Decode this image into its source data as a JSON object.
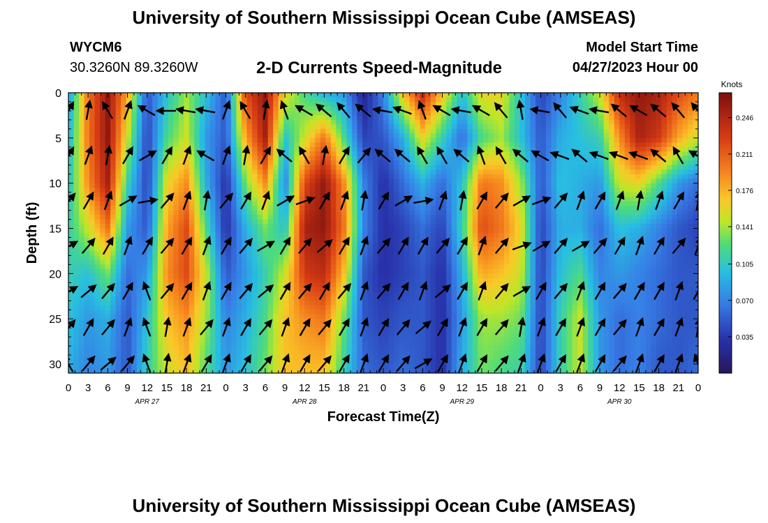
{
  "header": {
    "title": "University of Southern Mississippi Ocean Cube (AMSEAS)",
    "station_id": "WYCM6",
    "station_coords": "30.3260N  89.3260W",
    "plot_title": "2-D Currents Speed-Magnitude",
    "model_label": "Model Start Time",
    "model_time": "04/27/2023 Hour 00"
  },
  "footer": {
    "title": "University of Southern Mississippi Ocean Cube (AMSEAS)"
  },
  "chart_data": {
    "type": "heatmap",
    "title": "2-D Currents Speed-Magnitude",
    "xlabel": "Forecast Time(Z)",
    "ylabel": "Depth (ft)",
    "x_ticks": [
      "0",
      "3",
      "6",
      "9",
      "12",
      "15",
      "18",
      "21",
      "0",
      "3",
      "6",
      "9",
      "12",
      "15",
      "18",
      "21",
      "0",
      "3",
      "6",
      "9",
      "12",
      "15",
      "18",
      "21",
      "0",
      "3",
      "6",
      "9",
      "12",
      "15",
      "18",
      "21",
      "0"
    ],
    "date_labels": [
      "APR 27",
      "APR 28",
      "APR 29",
      "APR 30"
    ],
    "y_ticks": [
      "0",
      "5",
      "10",
      "15",
      "20",
      "25",
      "30"
    ],
    "ylim": [
      0,
      31
    ],
    "xlim_hours": [
      0,
      96
    ],
    "colorbar": {
      "unit": "Knots",
      "ticks": [
        "0.246",
        "0.211",
        "0.176",
        "0.141",
        "0.105",
        "0.070",
        "0.035"
      ],
      "range": [
        0.0,
        0.27
      ]
    },
    "speed_profiles": [
      {
        "hour": 0,
        "speeds": [
          0.08,
          0.09,
          0.1,
          0.11,
          0.11,
          0.1,
          0.09
        ]
      },
      {
        "hour": 3,
        "speeds": [
          0.2,
          0.2,
          0.19,
          0.15,
          0.1,
          0.08,
          0.07
        ]
      },
      {
        "hour": 6,
        "speeds": [
          0.26,
          0.26,
          0.25,
          0.2,
          0.13,
          0.09,
          0.08
        ]
      },
      {
        "hour": 9,
        "speeds": [
          0.18,
          0.15,
          0.11,
          0.08,
          0.06,
          0.05,
          0.05
        ]
      },
      {
        "hour": 12,
        "speeds": [
          0.05,
          0.04,
          0.04,
          0.05,
          0.08,
          0.1,
          0.11
        ]
      },
      {
        "hour": 15,
        "speeds": [
          0.1,
          0.12,
          0.16,
          0.18,
          0.19,
          0.17,
          0.15
        ]
      },
      {
        "hour": 18,
        "speeds": [
          0.14,
          0.15,
          0.19,
          0.22,
          0.22,
          0.19,
          0.17
        ]
      },
      {
        "hour": 21,
        "speeds": [
          0.1,
          0.08,
          0.09,
          0.12,
          0.15,
          0.14,
          0.12
        ]
      },
      {
        "hour": 24,
        "speeds": [
          0.05,
          0.05,
          0.03,
          0.03,
          0.05,
          0.07,
          0.08
        ]
      },
      {
        "hour": 27,
        "speeds": [
          0.22,
          0.18,
          0.13,
          0.09,
          0.08,
          0.09,
          0.1
        ]
      },
      {
        "hour": 30,
        "speeds": [
          0.26,
          0.25,
          0.19,
          0.13,
          0.11,
          0.12,
          0.13
        ]
      },
      {
        "hour": 33,
        "speeds": [
          0.16,
          0.1,
          0.07,
          0.1,
          0.15,
          0.17,
          0.17
        ]
      },
      {
        "hour": 36,
        "speeds": [
          0.12,
          0.15,
          0.22,
          0.25,
          0.23,
          0.19,
          0.17
        ]
      },
      {
        "hour": 39,
        "speeds": [
          0.09,
          0.2,
          0.26,
          0.26,
          0.24,
          0.2,
          0.17
        ]
      },
      {
        "hour": 42,
        "speeds": [
          0.08,
          0.12,
          0.19,
          0.2,
          0.17,
          0.13,
          0.11
        ]
      },
      {
        "hour": 45,
        "speeds": [
          0.02,
          0.04,
          0.07,
          0.07,
          0.05,
          0.05,
          0.06
        ]
      },
      {
        "hour": 48,
        "speeds": [
          0.07,
          0.05,
          0.03,
          0.03,
          0.03,
          0.04,
          0.05
        ]
      },
      {
        "hour": 51,
        "speeds": [
          0.17,
          0.09,
          0.06,
          0.04,
          0.04,
          0.05,
          0.06
        ]
      },
      {
        "hour": 54,
        "speeds": [
          0.24,
          0.16,
          0.09,
          0.06,
          0.05,
          0.05,
          0.05
        ]
      },
      {
        "hour": 57,
        "speeds": [
          0.17,
          0.11,
          0.06,
          0.04,
          0.03,
          0.03,
          0.03
        ]
      },
      {
        "hour": 60,
        "speeds": [
          0.1,
          0.06,
          0.1,
          0.11,
          0.09,
          0.08,
          0.09
        ]
      },
      {
        "hour": 63,
        "speeds": [
          0.16,
          0.12,
          0.2,
          0.22,
          0.18,
          0.14,
          0.13
        ]
      },
      {
        "hour": 66,
        "speeds": [
          0.16,
          0.14,
          0.19,
          0.2,
          0.17,
          0.14,
          0.12
        ]
      },
      {
        "hour": 69,
        "speeds": [
          0.1,
          0.1,
          0.14,
          0.16,
          0.15,
          0.13,
          0.11
        ]
      },
      {
        "hour": 72,
        "speeds": [
          0.04,
          0.05,
          0.05,
          0.04,
          0.04,
          0.04,
          0.04
        ]
      },
      {
        "hour": 75,
        "speeds": [
          0.07,
          0.09,
          0.1,
          0.09,
          0.1,
          0.11,
          0.11
        ]
      },
      {
        "hour": 78,
        "speeds": [
          0.11,
          0.1,
          0.09,
          0.09,
          0.12,
          0.15,
          0.15
        ]
      },
      {
        "hour": 81,
        "speeds": [
          0.15,
          0.11,
          0.08,
          0.06,
          0.07,
          0.08,
          0.08
        ]
      },
      {
        "hour": 84,
        "speeds": [
          0.24,
          0.19,
          0.15,
          0.1,
          0.08,
          0.06,
          0.06
        ]
      },
      {
        "hour": 87,
        "speeds": [
          0.26,
          0.25,
          0.16,
          0.09,
          0.07,
          0.07,
          0.07
        ]
      },
      {
        "hour": 90,
        "speeds": [
          0.25,
          0.23,
          0.12,
          0.07,
          0.06,
          0.06,
          0.05
        ]
      },
      {
        "hour": 93,
        "speeds": [
          0.22,
          0.18,
          0.08,
          0.05,
          0.05,
          0.05,
          0.05
        ]
      },
      {
        "hour": 96,
        "speeds": [
          0.2,
          0.15,
          0.06,
          0.04,
          0.05,
          0.05,
          0.06
        ]
      }
    ],
    "vector_rows_depth_ft": [
      2,
      7,
      12,
      17,
      22,
      26,
      30
    ],
    "vector_directions_deg": [
      [
        30,
        10,
        -30,
        20,
        -60,
        -90,
        -80,
        -80,
        20,
        -30,
        10,
        -20,
        -60,
        -50,
        -40,
        -50,
        -80,
        -70,
        -20,
        -60,
        -80,
        -60,
        -40,
        -10,
        -80,
        -40,
        -70,
        -80,
        -50,
        -60,
        -50,
        -40,
        -40
      ],
      [
        30,
        20,
        10,
        30,
        60,
        30,
        20,
        -60,
        20,
        10,
        30,
        -50,
        -30,
        10,
        30,
        40,
        -50,
        -50,
        -30,
        -30,
        -50,
        -20,
        -30,
        -50,
        -60,
        -70,
        -50,
        -70,
        -70,
        -70,
        -50,
        -30,
        -60
      ],
      [
        40,
        30,
        20,
        60,
        80,
        40,
        20,
        10,
        40,
        30,
        20,
        60,
        70,
        30,
        20,
        10,
        30,
        60,
        80,
        20,
        10,
        30,
        40,
        60,
        70,
        40,
        20,
        30,
        20,
        10,
        20,
        30,
        10
      ],
      [
        60,
        40,
        30,
        20,
        30,
        40,
        30,
        20,
        30,
        40,
        60,
        30,
        40,
        50,
        30,
        20,
        40,
        30,
        30,
        40,
        30,
        20,
        40,
        70,
        60,
        40,
        60,
        40,
        30,
        20,
        30,
        40,
        20
      ],
      [
        60,
        50,
        40,
        30,
        -20,
        40,
        30,
        20,
        30,
        40,
        50,
        30,
        40,
        30,
        40,
        20,
        40,
        30,
        20,
        50,
        30,
        20,
        40,
        60,
        30,
        40,
        20,
        30,
        40,
        30,
        30,
        20,
        30
      ],
      [
        40,
        30,
        40,
        20,
        -20,
        10,
        20,
        40,
        20,
        30,
        40,
        20,
        30,
        40,
        30,
        20,
        30,
        40,
        50,
        30,
        20,
        30,
        40,
        10,
        20,
        30,
        20,
        30,
        40,
        20,
        30,
        20,
        10
      ],
      [
        -30,
        40,
        50,
        40,
        -20,
        10,
        20,
        30,
        20,
        30,
        40,
        20,
        30,
        40,
        30,
        20,
        30,
        40,
        60,
        30,
        20,
        30,
        40,
        20,
        20,
        30,
        20,
        30,
        40,
        20,
        30,
        20,
        -20
      ]
    ]
  }
}
